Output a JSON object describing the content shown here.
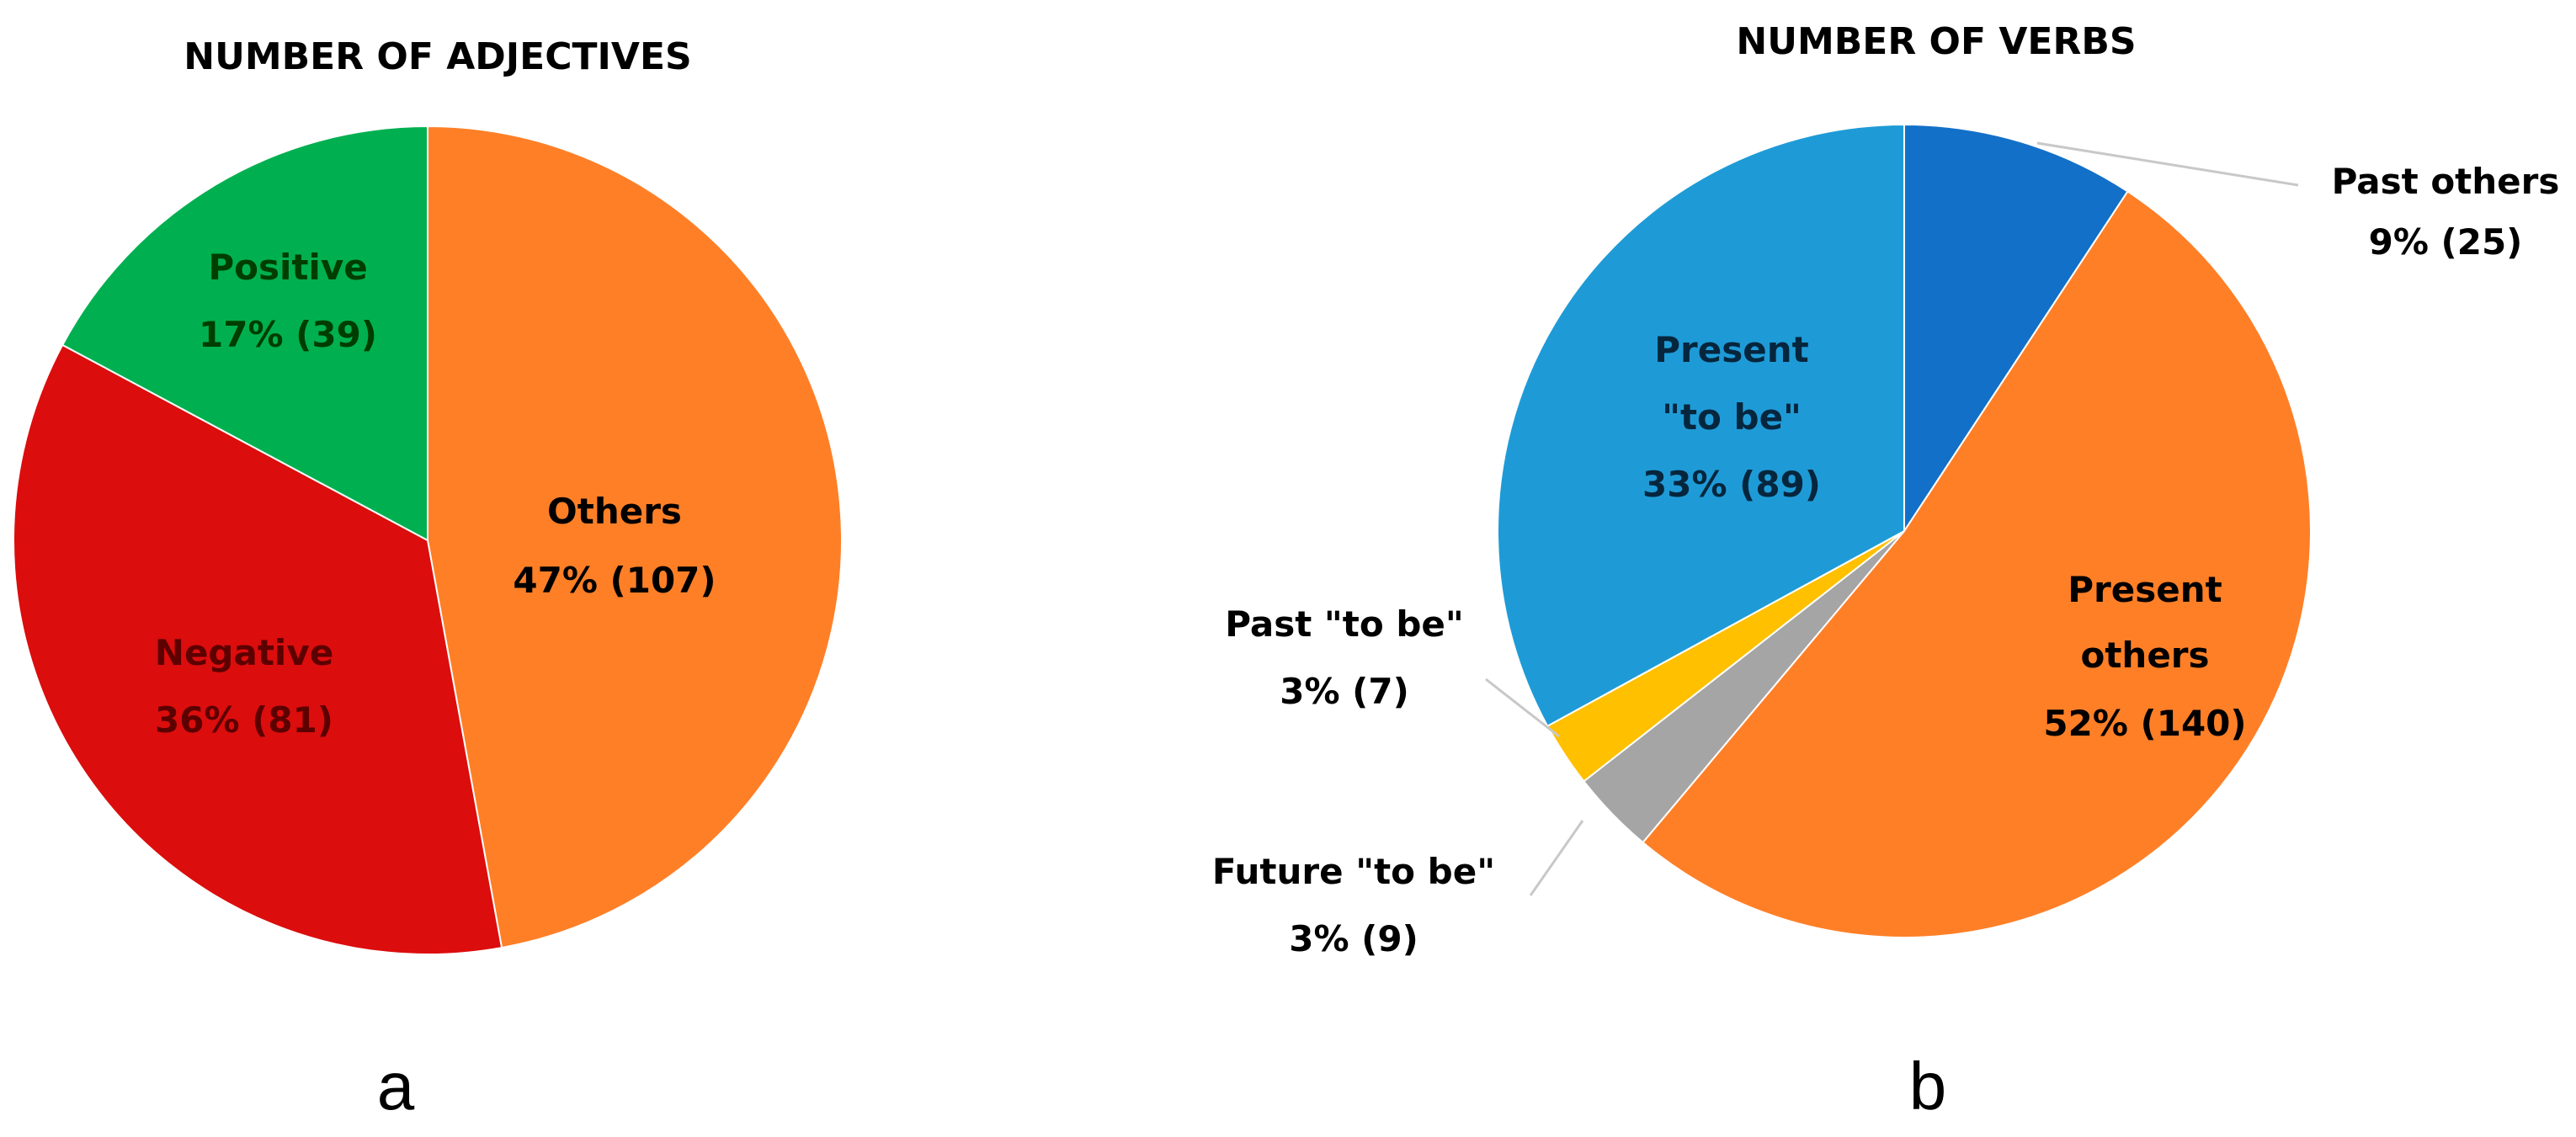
{
  "chart_data": [
    {
      "type": "pie",
      "title": "NUMBER OF ADJECTIVES",
      "panel_label": "a",
      "start_angle_deg": 0,
      "direction": "clockwise",
      "slices": [
        {
          "name": "Others",
          "value": 107,
          "percent_label": "47% (107)",
          "color": "#FF7F27"
        },
        {
          "name": "Negative",
          "value": 81,
          "percent_label": "36% (81)",
          "color": "#DC0D0D"
        },
        {
          "name": "Positive",
          "value": 39,
          "percent_label": "17% (39)",
          "color": "#00B050"
        }
      ],
      "label_colors": [
        "#000000",
        "#5C0000",
        "#003D00"
      ]
    },
    {
      "type": "pie",
      "title": "NUMBER OF VERBS",
      "panel_label": "b",
      "start_angle_deg": 0,
      "direction": "clockwise",
      "slices": [
        {
          "name": "Past others",
          "value": 25,
          "percent_label": "9% (25)",
          "color": "#1270C8"
        },
        {
          "name": "Present others",
          "value": 140,
          "percent_label": "52% (140)",
          "color": "#FF7F27"
        },
        {
          "name": "Future \"to be\"",
          "value": 9,
          "percent_label": "3% (9)",
          "color": "#A5A5A5"
        },
        {
          "name": "Past \"to be\"",
          "value": 7,
          "percent_label": "3% (7)",
          "color": "#FFC000"
        },
        {
          "name": "Present \"to be\"",
          "value": 89,
          "percent_label": "33% (89)",
          "color": "#1E9BD7"
        }
      ],
      "label_colors": [
        "#000000",
        "#000000",
        "#000000",
        "#000000",
        "#06263D"
      ]
    }
  ]
}
